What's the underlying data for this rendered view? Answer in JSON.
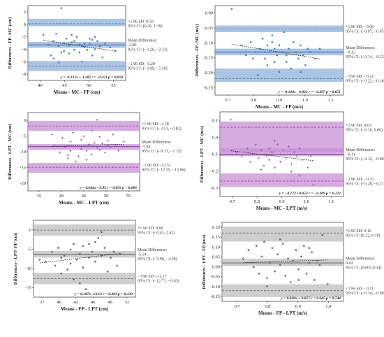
{
  "figure": {
    "colors": {
      "blue": "#4a7fc1",
      "purple": "#9b55b5",
      "gray": "#666666"
    },
    "panels": [
      {
        "id": "a",
        "color_key": "blue",
        "marker": "dot",
        "xlabel": "Means - MC - FP (cm)",
        "ylabel": "Differences - FP- MC (cm)",
        "regression": "y = -0.121x + 3.107  r = -0.251 p = 0.059",
        "upper_lines": [
          "+1.96 SD: 0.59",
          "95% CI: (0.20, 1.39)"
        ],
        "mean_lines": [
          "Mean Difference:",
          "-2.80",
          "95% CI: (- 3.26, - 2.33)"
        ],
        "lower_lines": [
          "- 1.96 SD: -6.20",
          "95% CI: (- 6.99, - 5.39)"
        ],
        "xticks": [
          "40",
          "45",
          "50",
          "55"
        ],
        "yticks": [
          "2",
          "0",
          "-2",
          "-4",
          "-6",
          "-8"
        ]
      },
      {
        "id": "b",
        "color_key": "blue",
        "marker": "dot",
        "xlabel": "Means - MC - FP (m/s)",
        "ylabel": "Differences - FP- MC (m/s)",
        "regression": "y = -0.120x - 0.021 r = - 0.297 p = 0.051",
        "upper_lines": [
          "+1.96 SD: - 0.06",
          "95% CI: (- 0.07, - 0.05)"
        ],
        "mean_lines": [
          "Mean Difference:",
          "- 0.13",
          "95% CI: (- 0.14, - 0.12)"
        ],
        "lower_lines": [
          "- 1.96 SD: - 0.21",
          "95% CI: (- 0.22, - 0.18)"
        ],
        "xticks": [
          "0.7",
          "0.8",
          "0.9",
          "1.0",
          "1.1"
        ],
        "yticks": [
          "0.00",
          "-0.05",
          "-0.10",
          "-0.15",
          "-0.20",
          "-0.25"
        ]
      },
      {
        "id": "c",
        "color_key": "purple",
        "marker": "plus",
        "xlabel": "Means - MC - LPT (cm)",
        "ylabel": "Differences - LPT - MC (cm)",
        "regression": "y = 0.044x -  9.95  r = 0.055 p = 0.685",
        "upper_lines": [
          "+1.96 SD: -2.18",
          "95% CI: (- 3.51, - 0.82)"
        ],
        "mean_lines": [
          "Mean Difference:",
          "-7.84",
          "95% CI: (- 8.73, - 7.15)"
        ],
        "lower_lines": [
          "- 1.96 SD: -13.51",
          "95% CI: (- 12.35, - 15.06)"
        ],
        "xticks": [
          "35",
          "40",
          "45",
          "50",
          "55"
        ],
        "yticks": [
          "0",
          "-5",
          "-10",
          "-15",
          "-20"
        ]
      },
      {
        "id": "d",
        "color_key": "purple",
        "marker": "plus",
        "xlabel": "Means - MC - LPT (m/s)",
        "ylabel": "Differences - LPT - MC (m/s)",
        "regression": "y = - 0.172 +0.052 r = - 0.209 p = 0.122",
        "upper_lines": [
          "+1.96 SD: 0.03",
          "95% CI: (- 0.10, 0.06)"
        ],
        "mean_lines": [
          "Mean Difference:",
          "- 0.11",
          "95% CI: (- 0.12, - 0.08)"
        ],
        "lower_lines": [
          "- 1.96 SD: - 0.25",
          "95% CI: (- 0.28, - 0.21)"
        ],
        "xticks": [
          "0.7",
          "0.8",
          "0.9",
          "1.0",
          "1.1"
        ],
        "yticks": [
          "0.1",
          "0.0",
          "-0.1",
          "-0.2",
          "-0.3"
        ]
      },
      {
        "id": "e",
        "color_key": "gray",
        "marker": "dot",
        "xlabel": "Means - FP - LPT (cm)",
        "ylabel": "Differences - LPT- FP (cm)",
        "regression": "y = 0.187x -13.13  r = 0.203 p = 0.133",
        "upper_lines": [
          "+1.96 SD: 0.99",
          "95% CI: (- 0.45, 2.42)"
        ],
        "mean_lines": [
          "Mean Difference:",
          "-5.14",
          "95% CI: (- 5.98, - 4.30)"
        ],
        "lower_lines": [
          "- 1.96 SD: -11.27",
          "95% CI: (- 12.71, - 9.83)"
        ],
        "xticks": [
          "37",
          "40",
          "43",
          "46",
          "49",
          "52"
        ],
        "yticks": [
          "0",
          "-5",
          "-10",
          "-15"
        ]
      },
      {
        "id": "f",
        "color_key": "gray",
        "marker": "dot",
        "xlabel": "Means - FP - LPT (m/s)",
        "ylabel": "Differences - LPT - FP (m/s)",
        "regression": "y = 0.038x + 0.057  r = 0.045 p = 0.744",
        "upper_lines": [
          "+1.96 SD: 0.16",
          "95% CI: (0.12, 0.19)"
        ],
        "mean_lines": [
          "Mean Difference:",
          "0.02",
          "95% CI: (0.005,0.04)"
        ],
        "lower_lines": [
          "- 1.96 SD: - 0.11",
          "95% CI: (- 0.14, - 0.08)"
        ],
        "xticks": [
          "0.7",
          "0.8",
          "0.9",
          "1.0"
        ],
        "yticks": [
          "0.20",
          "0.15",
          "0.10",
          "0.05",
          "0.00",
          "-0.05",
          "-0.10",
          "-0.15"
        ]
      }
    ]
  },
  "chart_data": [
    {
      "type": "scatter",
      "panel": "a",
      "xlabel": "Means - MC - FP (cm)",
      "ylabel": "Differences - FP- MC (cm)",
      "xlim": [
        38,
        57
      ],
      "ylim": [
        -8.5,
        3.5
      ],
      "bands": {
        "upper": 0.59,
        "mean": -2.8,
        "lower": -6.2,
        "upper_ci": [
          0.2,
          1.39
        ],
        "mean_ci": [
          -3.26,
          -2.33
        ],
        "lower_ci": [
          -6.99,
          -5.39
        ]
      },
      "regression": {
        "slope": -0.121,
        "intercept": 3.107,
        "r": -0.251,
        "p": 0.059
      },
      "x": [
        41,
        42,
        42.5,
        43,
        43.5,
        44,
        44,
        44.5,
        45,
        45,
        45.5,
        46,
        46,
        46.5,
        47,
        47,
        47.5,
        48,
        48,
        48.5,
        49,
        49,
        49.5,
        50,
        50,
        50.5,
        51,
        51,
        51.5,
        52,
        52.5,
        53,
        54,
        55,
        44.5,
        46.5,
        48.5,
        50.5,
        43
      ],
      "y": [
        -1.2,
        -2.8,
        -4.5,
        -2.2,
        -1.0,
        -3.0,
        -5.6,
        3.1,
        -2.5,
        -3.8,
        -1.8,
        -2.9,
        -4.2,
        -1.2,
        -2.2,
        -3.6,
        -1.5,
        -2.8,
        -4.0,
        -5.5,
        -2.6,
        -3.2,
        -3.6,
        -1.8,
        -2.7,
        -4.5,
        -1.5,
        -3.5,
        -2.2,
        -3.0,
        -4.8,
        -2.6,
        -3.2,
        -3.8,
        -4.0,
        -2.4,
        -3.0,
        -2.0,
        -5.0
      ]
    },
    {
      "type": "scatter",
      "panel": "b",
      "xlabel": "Means - MC - FP (m/s)",
      "ylabel": "Differences - FP- MC (m/s)",
      "xlim": [
        0.63,
        1.17
      ],
      "ylim": [
        -0.26,
        0.01
      ],
      "bands": {
        "upper": -0.06,
        "mean": -0.13,
        "lower": -0.21,
        "upper_ci": [
          -0.07,
          -0.05
        ],
        "mean_ci": [
          -0.14,
          -0.12
        ],
        "lower_ci": [
          -0.22,
          -0.18
        ]
      },
      "regression": {
        "slope": -0.12,
        "intercept": -0.021,
        "r": -0.297,
        "p": 0.051
      },
      "x": [
        0.7,
        0.74,
        0.76,
        0.78,
        0.8,
        0.81,
        0.82,
        0.83,
        0.84,
        0.85,
        0.85,
        0.86,
        0.87,
        0.88,
        0.88,
        0.89,
        0.9,
        0.9,
        0.91,
        0.92,
        0.93,
        0.94,
        0.95,
        0.96,
        0.97,
        0.98,
        0.99,
        1.0,
        1.01,
        1.02,
        1.03,
        1.05,
        1.07,
        0.79,
        0.87,
        0.93,
        0.99,
        0.84
      ],
      "y": [
        0.0,
        -0.11,
        -0.14,
        -0.1,
        -0.13,
        -0.2,
        -0.12,
        -0.09,
        -0.15,
        -0.11,
        -0.17,
        -0.13,
        -0.08,
        -0.12,
        -0.16,
        -0.14,
        -0.11,
        -0.19,
        -0.13,
        -0.07,
        -0.14,
        -0.12,
        -0.18,
        -0.1,
        -0.13,
        -0.15,
        -0.11,
        -0.14,
        -0.17,
        -0.12,
        -0.13,
        -0.15,
        -0.12,
        -0.15,
        -0.1,
        -0.16,
        -0.19,
        -0.13
      ]
    },
    {
      "type": "scatter",
      "panel": "c",
      "xlabel": "Means - MC - LPT (cm)",
      "ylabel": "Differences - LPT - MC (cm)",
      "xlim": [
        35,
        56
      ],
      "ylim": [
        -20,
        1.5
      ],
      "bands": {
        "upper": -2.18,
        "mean": -7.84,
        "lower": -13.51,
        "upper_ci": [
          -3.51,
          -0.82
        ],
        "mean_ci": [
          -8.73,
          -7.15
        ],
        "lower_ci": [
          -12.35,
          -15.06
        ]
      },
      "regression": {
        "slope": 0.044,
        "intercept": -9.95,
        "r": 0.055,
        "p": 0.685
      },
      "x": [
        39.5,
        40,
        41,
        41.5,
        42,
        42.5,
        43,
        43,
        43.5,
        44,
        44.5,
        45,
        45,
        45.5,
        46,
        46.5,
        47,
        47,
        47.5,
        48,
        48,
        48.5,
        49,
        49.5,
        50,
        50.5,
        51,
        51.5,
        52,
        53,
        44,
        46,
        48.5,
        42.5,
        50
      ],
      "y": [
        -4.5,
        -7.5,
        -9.5,
        -5.5,
        -8.0,
        -11.0,
        -6.5,
        -9.0,
        -4.0,
        -7.8,
        -10.5,
        -6.0,
        -8.5,
        -5.0,
        -9.0,
        -7.2,
        -3.5,
        -10.0,
        -6.8,
        -8.2,
        -0.5,
        -5.2,
        -7.0,
        -9.5,
        -6.2,
        -8.0,
        -4.5,
        -7.5,
        -9.0,
        -6.5,
        -12.0,
        -11.5,
        -8.8,
        -10.2,
        -7.6
      ]
    },
    {
      "type": "scatter",
      "panel": "d",
      "xlabel": "Means - MC - LPT (m/s)",
      "ylabel": "Differences - LPT - MC (m/s)",
      "xlim": [
        0.68,
        1.13
      ],
      "ylim": [
        -0.33,
        0.11
      ],
      "bands": {
        "upper": 0.03,
        "mean": -0.11,
        "lower": -0.25,
        "upper_ci": [
          -0.1,
          0.06
        ],
        "mean_ci": [
          -0.12,
          -0.08
        ],
        "lower_ci": [
          -0.28,
          -0.21
        ]
      },
      "regression": {
        "slope": -0.172,
        "intercept": 0.052,
        "r": -0.209,
        "p": 0.122
      },
      "x": [
        0.72,
        0.74,
        0.76,
        0.78,
        0.79,
        0.8,
        0.81,
        0.82,
        0.83,
        0.84,
        0.85,
        0.86,
        0.86,
        0.87,
        0.88,
        0.89,
        0.9,
        0.9,
        0.91,
        0.92,
        0.93,
        0.94,
        0.95,
        0.96,
        0.97,
        0.98,
        0.99,
        1.0,
        1.01,
        1.02,
        0.83,
        0.88,
        0.94,
        0.97
      ],
      "y": [
        0.07,
        -0.1,
        -0.12,
        -0.08,
        -0.15,
        -0.11,
        -0.06,
        -0.13,
        -0.09,
        -0.17,
        -0.12,
        -0.08,
        -0.14,
        -0.1,
        -0.18,
        -0.06,
        -0.11,
        -0.15,
        -0.09,
        -0.13,
        -0.07,
        -0.16,
        -0.1,
        -0.12,
        -0.08,
        -0.14,
        -0.11,
        -0.18,
        -0.12,
        -0.27,
        -0.19,
        -0.04,
        -0.2,
        -0.22
      ]
    },
    {
      "type": "scatter",
      "panel": "e",
      "xlabel": "Means - FP - LPT (cm)",
      "ylabel": "Differences - LPT- FP (cm)",
      "xlim": [
        37,
        53.5
      ],
      "ylim": [
        -16,
        3.5
      ],
      "bands": {
        "upper": 0.99,
        "mean": -5.14,
        "lower": -11.27,
        "upper_ci": [
          -0.45,
          2.42
        ],
        "mean_ci": [
          -5.98,
          -4.3
        ],
        "lower_ci": [
          -12.71,
          -9.83
        ]
      },
      "regression": {
        "slope": 0.187,
        "intercept": -13.13,
        "r": 0.203,
        "p": 0.133
      },
      "x": [
        38,
        39,
        40,
        40.5,
        41,
        41.5,
        42,
        42.5,
        43,
        43,
        43.5,
        44,
        44.5,
        45,
        45,
        45.5,
        46,
        46.5,
        47,
        47,
        47.5,
        48,
        48.5,
        49,
        49.5,
        50,
        50.5,
        51,
        41.5,
        43.5,
        46,
        48,
        44.5
      ],
      "y": [
        -6.5,
        -7.0,
        -4.5,
        -8.0,
        -3.5,
        -6.0,
        -5.5,
        -9.0,
        -4.0,
        -7.5,
        -2.5,
        -6.5,
        -5.0,
        -3.0,
        -8.5,
        -14.0,
        -6.0,
        -4.5,
        -2.0,
        -7.0,
        -1.0,
        -5.5,
        -3.5,
        -9.5,
        -6.0,
        -4.5,
        -8.0,
        -5.0,
        -10.0,
        -11.5,
        -2.5,
        0.5,
        -12.5
      ]
    },
    {
      "type": "scatter",
      "panel": "f",
      "xlabel": "Means - FP - LPT (m/s)",
      "ylabel": "Differences - LPT - FP (m/s)",
      "xlim": [
        0.64,
        1.1
      ],
      "ylim": [
        -0.16,
        0.21
      ],
      "bands": {
        "upper": 0.16,
        "mean": 0.02,
        "lower": -0.11,
        "upper_ci": [
          0.12,
          0.19
        ],
        "mean_ci": [
          0.005,
          0.04
        ],
        "lower_ci": [
          -0.14,
          -0.08
        ]
      },
      "regression": {
        "slope": 0.038,
        "intercept": 0.057,
        "r": 0.045,
        "p": 0.744
      },
      "x": [
        0.72,
        0.74,
        0.76,
        0.77,
        0.78,
        0.79,
        0.8,
        0.81,
        0.82,
        0.83,
        0.84,
        0.85,
        0.86,
        0.87,
        0.88,
        0.89,
        0.9,
        0.91,
        0.92,
        0.93,
        0.94,
        0.95,
        0.96,
        0.97,
        0.98,
        0.99,
        1.0,
        1.01,
        1.02,
        1.04,
        0.81,
        0.86,
        0.93,
        0.97
      ],
      "y": [
        0.04,
        0.08,
        0.0,
        0.1,
        -0.03,
        0.05,
        0.12,
        -0.05,
        0.02,
        0.09,
        -0.02,
        0.06,
        0.01,
        0.11,
        -0.04,
        0.04,
        -0.07,
        0.03,
        0.08,
        -0.01,
        0.05,
        0.1,
        -0.03,
        0.02,
        0.07,
        -0.06,
        0.03,
        0.01,
        0.15,
        -0.08,
        -0.09,
        0.13,
        -0.06,
        0.09
      ]
    }
  ]
}
